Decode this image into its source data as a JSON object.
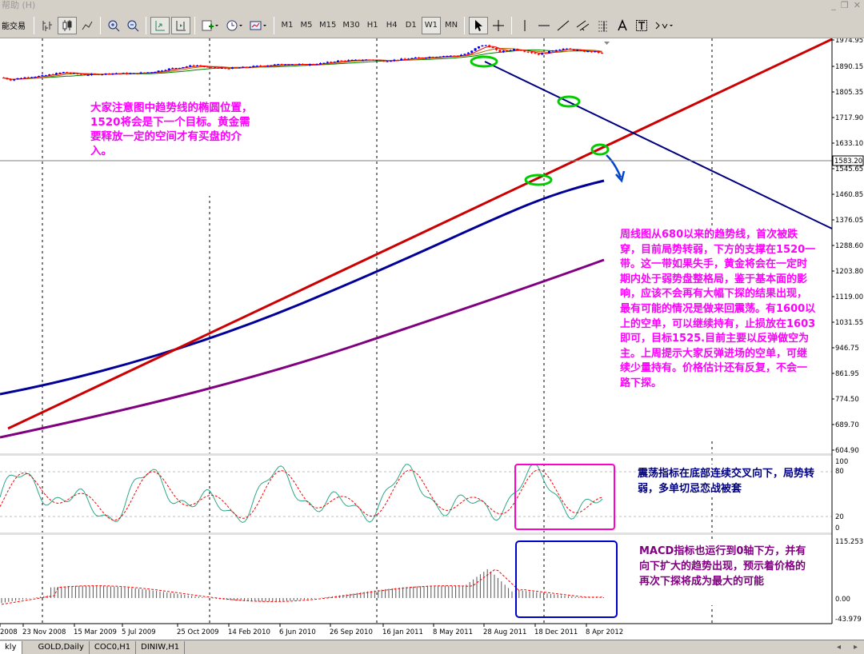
{
  "menu": {
    "help": "帮助 (H)"
  },
  "toolbar": {
    "left_label": "能交易",
    "timeframes": [
      "M1",
      "M5",
      "M15",
      "M30",
      "H1",
      "H4",
      "D1",
      "W1",
      "MN"
    ],
    "active_timeframe": "W1"
  },
  "price_axis": {
    "labels": [
      "1974.95",
      "1890.15",
      "1805.35",
      "1717.90",
      "1633.10",
      "1545.65",
      "1460.85",
      "1376.05",
      "1288.60",
      "1203.80",
      "1119.00",
      "1031.55",
      "946.75",
      "861.95",
      "774.50",
      "689.70",
      "604.90"
    ],
    "current_price": "1583.20"
  },
  "stoch_axis": {
    "labels": [
      "100",
      "80",
      "20",
      "0"
    ]
  },
  "macd_axis": {
    "labels": [
      "115.253",
      "0.00",
      "-43.979"
    ]
  },
  "date_axis": {
    "labels": [
      "2008",
      "23 Nov 2008",
      "15 Mar 2009",
      "5 Jul 2009",
      "25 Oct 2009",
      "14 Feb 2010",
      "6 Jun 2010",
      "26 Sep 2010",
      "16 Jan 2011",
      "8 May 2011",
      "28 Aug 2011",
      "18 Dec 2011",
      "8 Apr 2012"
    ]
  },
  "annotations": {
    "note1": "大家注意图中趋势线的椭圆位置，1520将会是下一个目标。黄金需要释放一定的空间才有买盘的介入。",
    "note2": "周线图从680以来的趋势线，首次被跌穿，目前局势转弱，下方的支撑在1520一带。这一带如果失手，黄金将会在一定时期内处于弱势盘整格局，鉴于基本面的影响，应该不会再有大幅下探的结果出现，最有可能的情况是做来回震荡。有1600以上的空单，可以继续持有，止损放在1603即可，目标1525.目前主要以反弹做空为主。上周提示大家反弹进场的空单，可继续少量持有。价格估计还有反复，不会一路下探。",
    "note3": "震荡指标在底部连续交叉向下，局势转弱，多单切忌恋战被套",
    "note4": "MACD指标也运行到0轴下方，并有向下扩大的趋势出现，预示着价格的再次下探将成为最大的可能"
  },
  "colors": {
    "bull": "#0000ff",
    "bear": "#ff0000",
    "trend_up": "#cc0000",
    "trend_down": "#000080",
    "ma_blue": "#000099",
    "ma_purple": "#800080",
    "note_text_magenta": "#ff00ff",
    "note_text_purple": "#800080"
  },
  "tabs": [
    {
      "label": "kly",
      "active": true
    },
    {
      "label": "GOLD,Daily",
      "active": false
    },
    {
      "label": "COC0,H1",
      "active": false
    },
    {
      "label": "DINIW,H1",
      "active": false
    }
  ]
}
